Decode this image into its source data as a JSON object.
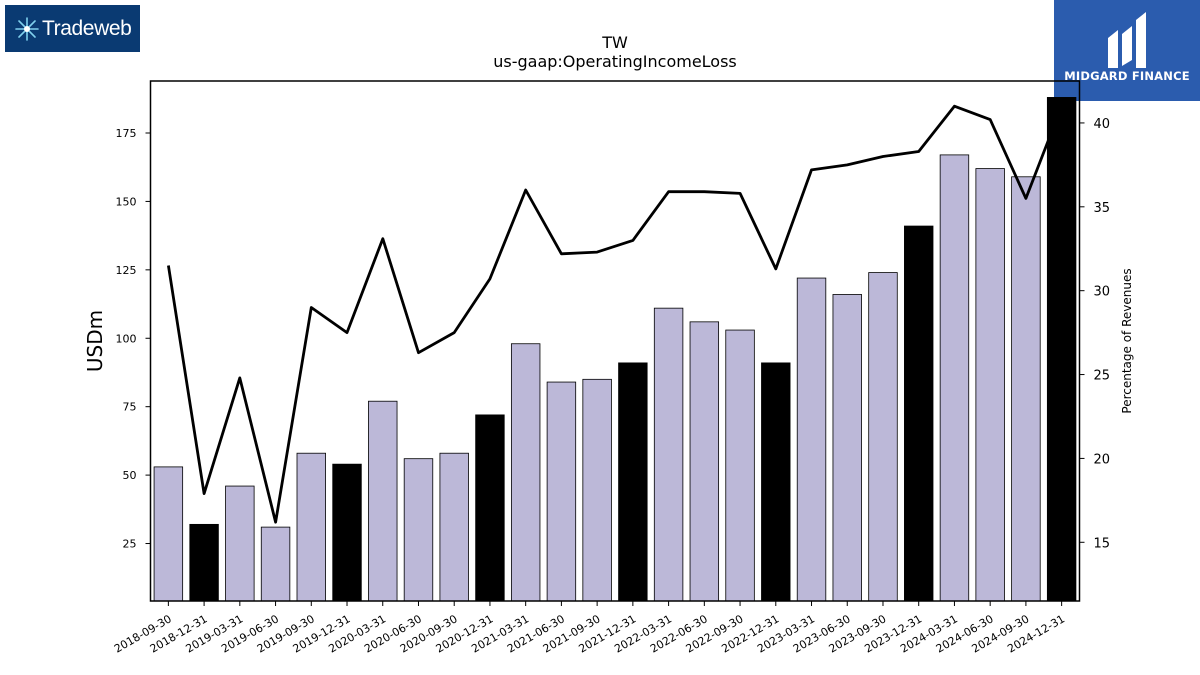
{
  "logos": {
    "left": {
      "name": "Tradeweb",
      "icon": "tradeweb-burst-icon",
      "bg": "#0a3a72"
    },
    "right": {
      "name": "MIDGARD FINANCE",
      "icon": "midgard-m-icon",
      "bg": "#2b5cae"
    }
  },
  "chart_data": {
    "type": "bar",
    "title": "TW",
    "subtitle": "us-gaap:OperatingIncomeLoss",
    "ylabel": "USDm",
    "y2label": "Percentage of Revenues",
    "ylim": [
      4,
      194
    ],
    "y2lim": [
      11.5,
      42.5
    ],
    "yticks": [
      25,
      50,
      75,
      100,
      125,
      150,
      175
    ],
    "y2ticks": [
      15,
      20,
      25,
      30,
      35,
      40
    ],
    "grid": false,
    "categories": [
      "2018-09-30",
      "2018-12-31",
      "2019-03-31",
      "2019-06-30",
      "2019-09-30",
      "2019-12-31",
      "2020-03-31",
      "2020-06-30",
      "2020-09-30",
      "2020-12-31",
      "2021-03-31",
      "2021-06-30",
      "2021-09-30",
      "2021-12-31",
      "2022-03-31",
      "2022-06-30",
      "2022-09-30",
      "2022-12-31",
      "2023-03-31",
      "2023-06-30",
      "2023-09-30",
      "2023-12-31",
      "2024-03-31",
      "2024-06-30",
      "2024-09-30",
      "2024-12-31"
    ],
    "series": [
      {
        "kind": "bar",
        "axis": "left",
        "values": [
          53,
          32,
          46,
          31,
          58,
          54,
          77,
          56,
          58,
          72,
          98,
          84,
          85,
          91,
          111,
          106,
          103,
          91,
          122,
          116,
          124,
          141,
          167,
          162,
          159,
          188
        ],
        "highlight": [
          false,
          true,
          false,
          false,
          false,
          true,
          false,
          false,
          false,
          true,
          false,
          false,
          false,
          true,
          false,
          false,
          false,
          true,
          false,
          false,
          false,
          true,
          false,
          false,
          false,
          true
        ]
      },
      {
        "kind": "line",
        "axis": "right",
        "values": [
          31.5,
          17.9,
          24.8,
          16.2,
          29.0,
          27.5,
          33.1,
          26.3,
          27.5,
          30.7,
          36.0,
          32.2,
          32.3,
          33.0,
          35.9,
          35.9,
          35.8,
          31.3,
          37.2,
          37.5,
          38.0,
          38.3,
          41.0,
          40.2,
          35.5,
          41.0
        ]
      }
    ],
    "colors": {
      "bar": "#bcb8d8",
      "bar_highlight": "#000000",
      "line": "#000000"
    }
  }
}
